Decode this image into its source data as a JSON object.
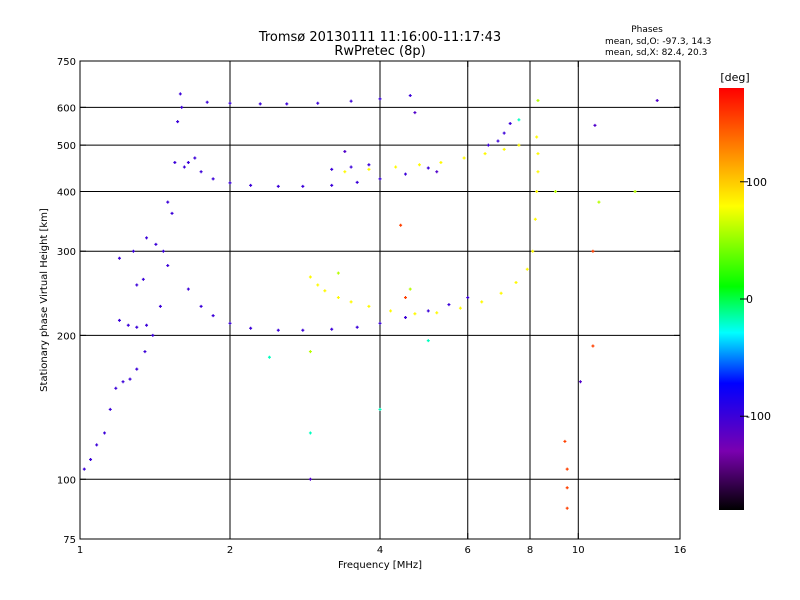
{
  "header": {
    "title_line1": "Tromsø 20130111 11:16:00-11:17:43",
    "title_line2": "RwPretec (8p)",
    "phase_title": "Phases",
    "phase_o": "mean, sd,O: -97.3, 14.3",
    "phase_x": "mean, sd,X:  82.4, 20.3"
  },
  "colorbar": {
    "unit_label": "[deg]",
    "ticks": [
      {
        "value": 100,
        "label": "100"
      },
      {
        "value": 0,
        "label": "0"
      },
      {
        "value": -100,
        "label": "-100"
      }
    ],
    "range": [
      -180,
      180
    ],
    "colors": {
      "black": "#000000",
      "purple": "#7a00b0",
      "blue": "#0000ff",
      "cyan": "#00ffff",
      "green": "#00ff00",
      "yellow": "#ffff00",
      "red": "#ff0000"
    }
  },
  "chart_data": {
    "type": "scatter",
    "title": "Tromsø 20130111 11:16:00-11:17:43",
    "subtitle": "RwPretec (8p)",
    "xlabel": "Frequency [MHz]",
    "ylabel": "Stationary phase Virtual Height [km]",
    "x_scale": "log",
    "y_scale": "log",
    "xlim": [
      1,
      16
    ],
    "ylim": [
      75,
      750
    ],
    "x_ticks": [
      {
        "value": 1,
        "label": "1"
      },
      {
        "value": 2,
        "label": "2"
      },
      {
        "value": 4,
        "label": "4"
      },
      {
        "value": 6,
        "label": "6"
      },
      {
        "value": 8,
        "label": "8"
      },
      {
        "value": 10,
        "label": "10"
      },
      {
        "value": 16,
        "label": "16"
      }
    ],
    "y_ticks": [
      {
        "value": 75,
        "label": "75"
      },
      {
        "value": 100,
        "label": "100"
      },
      {
        "value": 200,
        "label": "200"
      },
      {
        "value": 300,
        "label": "300"
      },
      {
        "value": 400,
        "label": "400"
      },
      {
        "value": 500,
        "label": "500"
      },
      {
        "value": 600,
        "label": "600"
      },
      {
        "value": 750,
        "label": "750"
      }
    ],
    "x_grid": [
      2,
      4,
      6,
      8,
      10
    ],
    "y_grid": [
      100,
      200,
      300,
      400,
      500,
      600
    ],
    "grid": true,
    "color_variable": "Phase [deg]",
    "series": [
      {
        "mode": "O",
        "phase": -100,
        "points": [
          [
            1.02,
            105
          ],
          [
            1.05,
            110
          ],
          [
            1.08,
            118
          ],
          [
            1.12,
            125
          ],
          [
            1.15,
            140
          ],
          [
            1.18,
            155
          ],
          [
            1.22,
            160
          ],
          [
            1.26,
            162
          ],
          [
            1.3,
            170
          ],
          [
            1.35,
            185
          ],
          [
            1.4,
            200
          ],
          [
            1.45,
            230
          ],
          [
            1.5,
            280
          ],
          [
            1.53,
            360
          ],
          [
            1.55,
            460
          ],
          [
            1.57,
            560
          ],
          [
            1.59,
            640
          ],
          [
            1.6,
            600
          ],
          [
            1.62,
            450
          ],
          [
            1.2,
            290
          ],
          [
            1.28,
            300
          ],
          [
            1.36,
            320
          ],
          [
            1.42,
            310
          ],
          [
            1.2,
            215
          ],
          [
            1.25,
            210
          ],
          [
            1.3,
            208
          ],
          [
            1.36,
            210
          ],
          [
            1.65,
            250
          ],
          [
            1.75,
            230
          ],
          [
            1.85,
            220
          ],
          [
            2.0,
            212
          ],
          [
            2.2,
            207
          ],
          [
            2.5,
            205
          ],
          [
            2.8,
            205
          ],
          [
            3.2,
            206
          ],
          [
            3.6,
            208
          ],
          [
            4.0,
            212
          ],
          [
            4.5,
            218
          ],
          [
            5.0,
            225
          ],
          [
            5.5,
            232
          ],
          [
            6.0,
            240
          ],
          [
            1.65,
            460
          ],
          [
            1.75,
            440
          ],
          [
            1.85,
            425
          ],
          [
            2.0,
            417
          ],
          [
            2.2,
            412
          ],
          [
            2.5,
            410
          ],
          [
            2.8,
            410
          ],
          [
            3.2,
            412
          ],
          [
            3.6,
            418
          ],
          [
            4.0,
            425
          ],
          [
            4.5,
            435
          ],
          [
            5.0,
            448
          ],
          [
            1.8,
            615
          ],
          [
            2.0,
            612
          ],
          [
            2.3,
            610
          ],
          [
            2.6,
            610
          ],
          [
            3.0,
            612
          ],
          [
            3.5,
            618
          ],
          [
            4.0,
            625
          ],
          [
            4.6,
            635
          ],
          [
            1.3,
            255
          ],
          [
            1.34,
            262
          ],
          [
            1.47,
            300
          ],
          [
            1.5,
            380
          ],
          [
            1.7,
            470
          ],
          [
            3.2,
            445
          ],
          [
            3.5,
            450
          ],
          [
            3.8,
            455
          ],
          [
            6.6,
            500
          ],
          [
            6.9,
            510
          ],
          [
            7.1,
            530
          ],
          [
            7.3,
            555
          ]
        ]
      },
      {
        "mode": "X",
        "phase": 82,
        "points": [
          [
            2.9,
            265
          ],
          [
            3.0,
            255
          ],
          [
            3.1,
            248
          ],
          [
            3.3,
            240
          ],
          [
            3.5,
            235
          ],
          [
            3.8,
            230
          ],
          [
            4.2,
            225
          ],
          [
            4.7,
            222
          ],
          [
            5.2,
            223
          ],
          [
            5.8,
            228
          ],
          [
            6.4,
            235
          ],
          [
            7.0,
            245
          ],
          [
            7.5,
            258
          ],
          [
            7.9,
            275
          ],
          [
            8.1,
            300
          ],
          [
            8.2,
            350
          ],
          [
            8.25,
            400
          ],
          [
            8.3,
            440
          ],
          [
            8.3,
            480
          ],
          [
            8.25,
            520
          ],
          [
            3.4,
            440
          ],
          [
            3.8,
            445
          ],
          [
            4.3,
            450
          ],
          [
            4.8,
            455
          ],
          [
            5.3,
            460
          ],
          [
            5.9,
            470
          ],
          [
            6.5,
            480
          ],
          [
            7.1,
            490
          ],
          [
            7.6,
            500
          ]
        ]
      },
      {
        "mode": "other",
        "phase": 60,
        "points": [
          [
            2.9,
            185
          ],
          [
            3.3,
            270
          ],
          [
            4.6,
            250
          ],
          [
            8.3,
            620
          ],
          [
            9.0,
            400
          ],
          [
            11.0,
            380
          ],
          [
            13.0,
            400
          ]
        ]
      },
      {
        "mode": "other",
        "phase": 155,
        "points": [
          [
            9.4,
            120
          ],
          [
            9.5,
            105
          ],
          [
            9.5,
            96
          ],
          [
            9.5,
            87
          ],
          [
            10.7,
            190
          ],
          [
            10.7,
            300
          ],
          [
            4.4,
            340
          ],
          [
            4.5,
            240
          ]
        ]
      },
      {
        "mode": "other",
        "phase": -20,
        "points": [
          [
            2.9,
            125
          ],
          [
            4.0,
            140
          ],
          [
            7.6,
            565
          ],
          [
            2.4,
            180
          ],
          [
            5.0,
            195
          ]
        ]
      },
      {
        "mode": "other",
        "phase": -110,
        "points": [
          [
            2.9,
            100
          ],
          [
            10.1,
            160
          ],
          [
            10.8,
            550
          ],
          [
            14.4,
            620
          ],
          [
            4.7,
            585
          ],
          [
            5.2,
            440
          ],
          [
            3.4,
            485
          ]
        ]
      }
    ]
  }
}
